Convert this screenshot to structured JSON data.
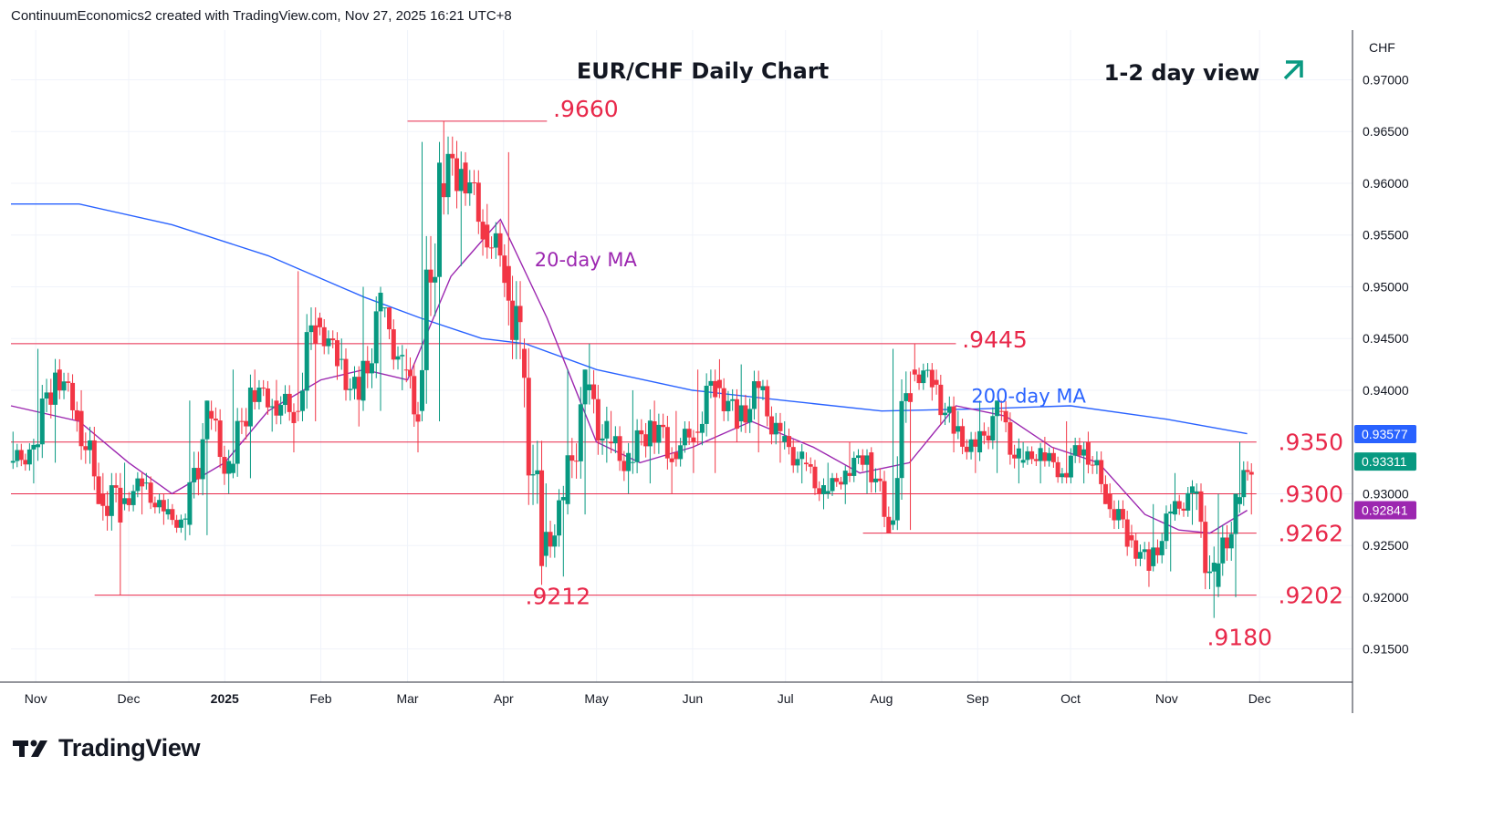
{
  "header": {
    "attribution": "ContinuumEconomics2 created with TradingView.com, Nov 27, 2025 16:21 UTC+8"
  },
  "footer": {
    "brand": "TradingView",
    "logo_icon": "tradingview-logo-icon"
  },
  "colors": {
    "up": "#089981",
    "down": "#f23645",
    "level": "#e8284a",
    "ma20": "#9c27b0",
    "ma200": "#2962ff",
    "grid": "#f0f3fa",
    "text": "#131722"
  },
  "chart_data": {
    "type": "candlestick",
    "title": "EUR/CHF Daily Chart",
    "view_label": "1-2 day view",
    "view_icon": "up-right-arrow-icon",
    "currency": "CHF",
    "ylim": [
      0.9118,
      0.9748
    ],
    "y_ticks": [
      "0.97000",
      "0.96500",
      "0.96000",
      "0.95500",
      "0.95000",
      "0.94500",
      "0.94000",
      "0.93000",
      "0.92500",
      "0.92000",
      "0.91500"
    ],
    "x_range": [
      "2024-10-24",
      "2025-12-31"
    ],
    "x_ticks": [
      {
        "label": "Nov",
        "date": "2024-11-01"
      },
      {
        "label": "Dec",
        "date": "2024-12-01"
      },
      {
        "label": "2025",
        "date": "2025-01-01",
        "bold": true
      },
      {
        "label": "Feb",
        "date": "2025-02-01"
      },
      {
        "label": "Mar",
        "date": "2025-03-01"
      },
      {
        "label": "Apr",
        "date": "2025-04-01"
      },
      {
        "label": "May",
        "date": "2025-05-01"
      },
      {
        "label": "Jun",
        "date": "2025-06-01"
      },
      {
        "label": "Jul",
        "date": "2025-07-01"
      },
      {
        "label": "Aug",
        "date": "2025-08-01"
      },
      {
        "label": "Sep",
        "date": "2025-09-01"
      },
      {
        "label": "Oct",
        "date": "2025-10-01"
      },
      {
        "label": "Nov",
        "date": "2025-11-01"
      },
      {
        "label": "Dec",
        "date": "2025-12-01"
      }
    ],
    "levels": [
      {
        "label": ".9660",
        "value": 0.966,
        "from": "2025-03-01",
        "to": "2025-04-15",
        "label_date": "2025-04-17",
        "label_above": true
      },
      {
        "label": ".9445",
        "value": 0.9445,
        "from": "2024-10-24",
        "to": "2025-08-25",
        "label_date": "2025-08-27",
        "label_above": true
      },
      {
        "label": ".9350",
        "value": 0.935,
        "from": "2024-10-24",
        "to": "2025-11-30",
        "label_date": "2025-12-07",
        "label_above": false
      },
      {
        "label": ".9300",
        "value": 0.93,
        "from": "2024-10-24",
        "to": "2025-11-30",
        "label_date": "2025-12-07",
        "label_above": false
      },
      {
        "label": ".9262",
        "value": 0.9262,
        "from": "2025-07-26",
        "to": "2025-11-30",
        "label_date": "2025-12-07",
        "label_above": false
      },
      {
        "label": ".9202",
        "value": 0.9202,
        "from": "2024-11-20",
        "to": "2025-11-30",
        "label_date": "2025-12-07",
        "label_above": false
      },
      {
        "label": ".9212",
        "value": 0.9212,
        "label_date": "2025-04-08",
        "label_only": true
      },
      {
        "label": ".9180",
        "value": 0.918,
        "label_date": "2025-11-14",
        "label_only": true
      }
    ],
    "ma_labels": [
      {
        "label": "20-day MA",
        "color": "#9c27b0",
        "date": "2025-04-11",
        "value": 0.952
      },
      {
        "label": "200-day MA",
        "color": "#2962ff",
        "date": "2025-08-30",
        "value": 0.9388
      }
    ],
    "price_tags": [
      {
        "label": "0.93577",
        "value": 0.93577,
        "color": "#2962ff"
      },
      {
        "label": "0.93311",
        "value": 0.93311,
        "color": "#089981"
      },
      {
        "label": "0.92841",
        "value": 0.92841,
        "color": "#9c27b0"
      }
    ],
    "candles_weekly_approx": [
      [
        "2024-10-24",
        0.933,
        0.936,
        0.931,
        0.934
      ],
      [
        "2024-11-01",
        0.9345,
        0.944,
        0.933,
        0.942
      ],
      [
        "2024-11-08",
        0.942,
        0.943,
        0.936,
        0.938
      ],
      [
        "2024-11-15",
        0.938,
        0.94,
        0.929,
        0.93
      ],
      [
        "2024-11-22",
        0.93,
        0.932,
        0.9202,
        0.929
      ],
      [
        "2024-11-29",
        0.929,
        0.933,
        0.928,
        0.931
      ],
      [
        "2024-12-06",
        0.931,
        0.932,
        0.927,
        0.928
      ],
      [
        "2024-12-13",
        0.928,
        0.9295,
        0.9255,
        0.927
      ],
      [
        "2024-12-20",
        0.927,
        0.939,
        0.926,
        0.938
      ],
      [
        "2024-12-27",
        0.938,
        0.939,
        0.93,
        0.932
      ],
      [
        "2025-01-03",
        0.932,
        0.942,
        0.9315,
        0.94
      ],
      [
        "2025-01-10",
        0.94,
        0.942,
        0.936,
        0.939
      ],
      [
        "2025-01-17",
        0.939,
        0.941,
        0.934,
        0.938
      ],
      [
        "2025-01-24",
        0.938,
        0.9515,
        0.937,
        0.947
      ],
      [
        "2025-01-31",
        0.947,
        0.9475,
        0.941,
        0.943
      ],
      [
        "2025-02-07",
        0.943,
        0.945,
        0.9365,
        0.939
      ],
      [
        "2025-02-14",
        0.939,
        0.95,
        0.938,
        0.948
      ],
      [
        "2025-02-21",
        0.948,
        0.948,
        0.94,
        0.942
      ],
      [
        "2025-02-28",
        0.942,
        0.944,
        0.934,
        0.938
      ],
      [
        "2025-03-05",
        0.938,
        0.964,
        0.937,
        0.96
      ],
      [
        "2025-03-12",
        0.96,
        0.966,
        0.952,
        0.962
      ],
      [
        "2025-03-19",
        0.962,
        0.963,
        0.953,
        0.956
      ],
      [
        "2025-03-26",
        0.956,
        0.958,
        0.949,
        0.952
      ],
      [
        "2025-04-02",
        0.952,
        0.963,
        0.943,
        0.944
      ],
      [
        "2025-04-07",
        0.944,
        0.945,
        0.9212,
        0.924
      ],
      [
        "2025-04-14",
        0.924,
        0.931,
        0.922,
        0.929
      ],
      [
        "2025-04-21",
        0.929,
        0.942,
        0.928,
        0.94
      ],
      [
        "2025-04-28",
        0.94,
        0.9445,
        0.933,
        0.935
      ],
      [
        "2025-05-05",
        0.935,
        0.938,
        0.93,
        0.933
      ],
      [
        "2025-05-12",
        0.933,
        0.94,
        0.931,
        0.937
      ],
      [
        "2025-05-19",
        0.937,
        0.939,
        0.93,
        0.934
      ],
      [
        "2025-05-26",
        0.934,
        0.938,
        0.932,
        0.936
      ],
      [
        "2025-06-02",
        0.936,
        0.942,
        0.932,
        0.941
      ],
      [
        "2025-06-09",
        0.941,
        0.943,
        0.935,
        0.937
      ],
      [
        "2025-06-16",
        0.937,
        0.9425,
        0.934,
        0.94
      ],
      [
        "2025-06-23",
        0.94,
        0.941,
        0.933,
        0.935
      ],
      [
        "2025-06-30",
        0.935,
        0.937,
        0.931,
        0.933
      ],
      [
        "2025-07-07",
        0.933,
        0.934,
        0.9285,
        0.93
      ],
      [
        "2025-07-14",
        0.93,
        0.933,
        0.929,
        0.932
      ],
      [
        "2025-07-21",
        0.932,
        0.935,
        0.93,
        0.934
      ],
      [
        "2025-07-28",
        0.934,
        0.9345,
        0.9262,
        0.927
      ],
      [
        "2025-08-04",
        0.927,
        0.944,
        0.9265,
        0.942
      ],
      [
        "2025-08-11",
        0.942,
        0.9445,
        0.939,
        0.941
      ],
      [
        "2025-08-18",
        0.941,
        0.942,
        0.934,
        0.936
      ],
      [
        "2025-08-25",
        0.936,
        0.938,
        0.932,
        0.934
      ],
      [
        "2025-09-01",
        0.934,
        0.939,
        0.932,
        0.938
      ],
      [
        "2025-09-08",
        0.938,
        0.939,
        0.931,
        0.933
      ],
      [
        "2025-09-15",
        0.933,
        0.935,
        0.931,
        0.934
      ],
      [
        "2025-09-22",
        0.934,
        0.9355,
        0.931,
        0.932
      ],
      [
        "2025-09-29",
        0.932,
        0.937,
        0.931,
        0.935
      ],
      [
        "2025-10-06",
        0.935,
        0.936,
        0.929,
        0.93
      ],
      [
        "2025-10-13",
        0.93,
        0.931,
        0.924,
        0.926
      ],
      [
        "2025-10-20",
        0.926,
        0.927,
        0.921,
        0.923
      ],
      [
        "2025-10-27",
        0.923,
        0.929,
        0.9225,
        0.928
      ],
      [
        "2025-11-03",
        0.928,
        0.932,
        0.927,
        0.93
      ],
      [
        "2025-11-10",
        0.93,
        0.931,
        0.918,
        0.921
      ],
      [
        "2025-11-17",
        0.921,
        0.93,
        0.92,
        0.929
      ],
      [
        "2025-11-24",
        0.929,
        0.935,
        0.928,
        0.9331
      ]
    ],
    "ma200_approx": [
      [
        "2024-10-24",
        0.958
      ],
      [
        "2024-11-15",
        0.958
      ],
      [
        "2024-12-15",
        0.956
      ],
      [
        "2025-01-15",
        0.953
      ],
      [
        "2025-02-15",
        0.949
      ],
      [
        "2025-03-05",
        0.947
      ],
      [
        "2025-03-25",
        0.945
      ],
      [
        "2025-04-08",
        0.9445
      ],
      [
        "2025-05-01",
        0.942
      ],
      [
        "2025-06-01",
        0.94
      ],
      [
        "2025-07-01",
        0.939
      ],
      [
        "2025-08-01",
        0.938
      ],
      [
        "2025-09-01",
        0.9382
      ],
      [
        "2025-10-01",
        0.9385
      ],
      [
        "2025-11-01",
        0.9372
      ],
      [
        "2025-11-27",
        0.9358
      ]
    ],
    "ma20_approx": [
      [
        "2024-10-24",
        0.9385
      ],
      [
        "2024-11-15",
        0.937
      ],
      [
        "2024-12-01",
        0.933
      ],
      [
        "2024-12-15",
        0.93
      ],
      [
        "2025-01-01",
        0.933
      ],
      [
        "2025-01-15",
        0.938
      ],
      [
        "2025-02-01",
        0.941
      ],
      [
        "2025-02-15",
        0.942
      ],
      [
        "2025-03-01",
        0.941
      ],
      [
        "2025-03-15",
        0.951
      ],
      [
        "2025-03-31",
        0.9565
      ],
      [
        "2025-04-15",
        0.947
      ],
      [
        "2025-05-01",
        0.935
      ],
      [
        "2025-05-15",
        0.933
      ],
      [
        "2025-06-01",
        0.9345
      ],
      [
        "2025-06-20",
        0.937
      ],
      [
        "2025-07-10",
        0.9345
      ],
      [
        "2025-07-25",
        0.932
      ],
      [
        "2025-08-10",
        0.933
      ],
      [
        "2025-08-25",
        0.9385
      ],
      [
        "2025-09-10",
        0.9375
      ],
      [
        "2025-09-25",
        0.9345
      ],
      [
        "2025-10-10",
        0.933
      ],
      [
        "2025-10-25",
        0.928
      ],
      [
        "2025-11-05",
        0.9265
      ],
      [
        "2025-11-15",
        0.9262
      ],
      [
        "2025-11-27",
        0.9284
      ]
    ]
  }
}
